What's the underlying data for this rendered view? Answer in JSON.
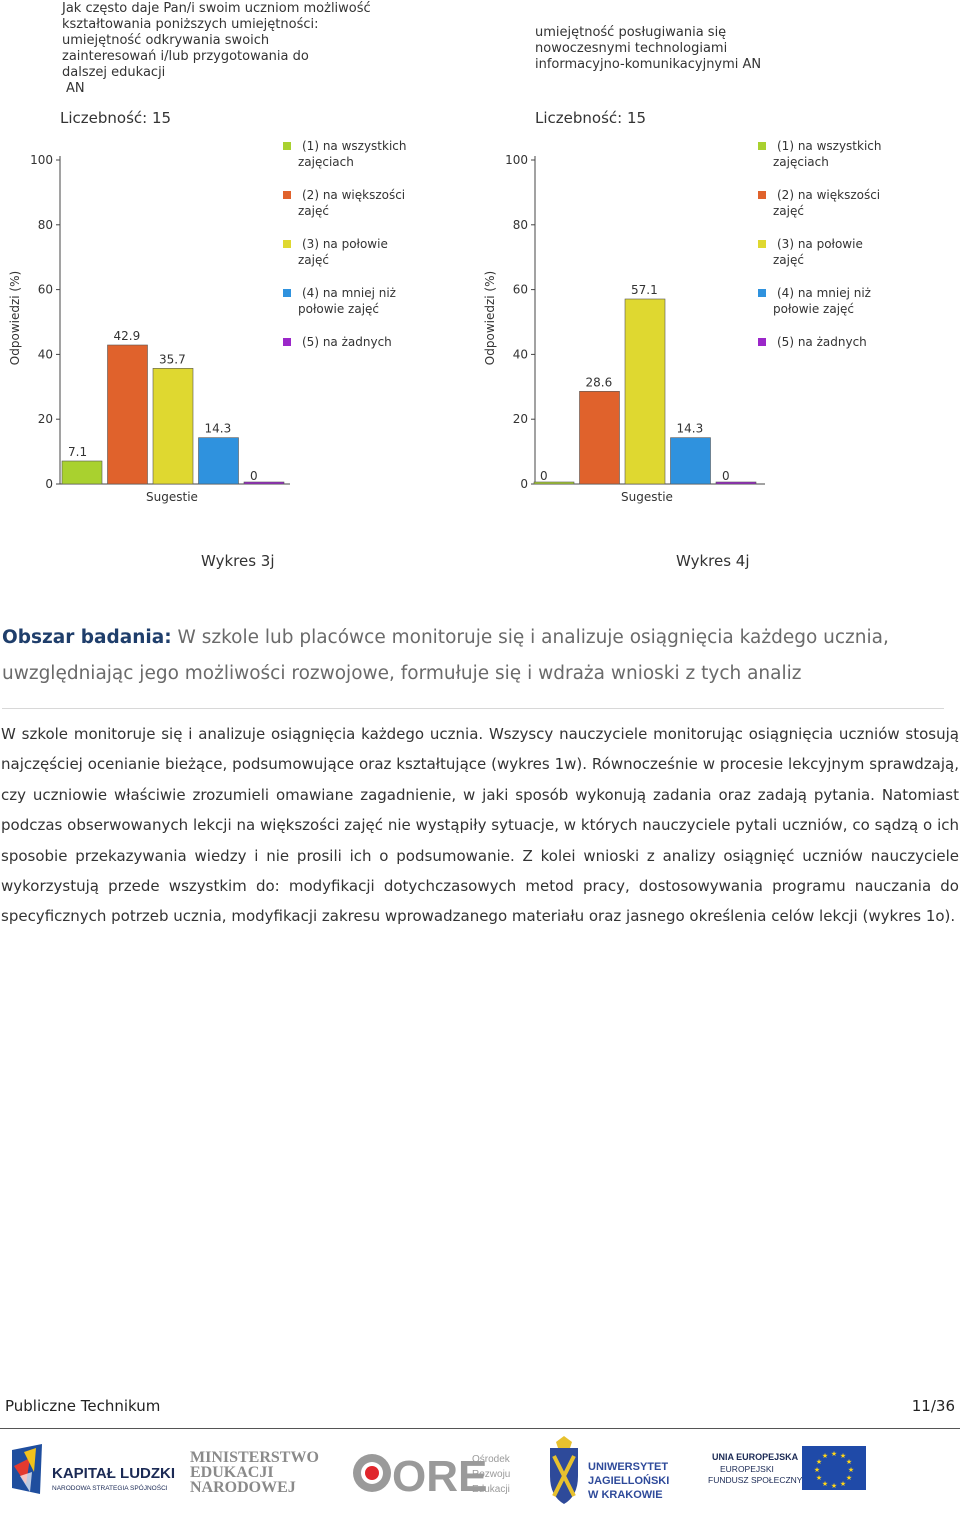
{
  "charts": {
    "left": {
      "title_lines": [
        "Jak często daje Pan/i swoim uczniom możliwość",
        "kształtowania poniższych umiejętności:",
        "umiejętność odkrywania swoich",
        "zainteresowań i/lub przygotowania do",
        "dalszej edukacji",
        "AN"
      ],
      "count_label": "Liczebność: 15",
      "caption": "Wykres 3j"
    },
    "right": {
      "title_lines": [
        "umiejętność posługiwania się",
        "nowoczesnymi technologiami",
        "informacyjno-komunikacyjnymi AN"
      ],
      "count_label": "Liczebność: 15",
      "caption": "Wykres 4j"
    }
  },
  "legend": [
    {
      "lines": [
        "(1) na wszystkich",
        "zajęciach"
      ],
      "color": "#a9d12f"
    },
    {
      "lines": [
        "(2) na większości",
        "zajęć"
      ],
      "color": "#e0622c"
    },
    {
      "lines": [
        "(3) na połowie",
        "zajęć"
      ],
      "color": "#dfd830"
    },
    {
      "lines": [
        "(4) na mniej niż",
        "połowie zajęć"
      ],
      "color": "#2f92de"
    },
    {
      "lines": [
        "(5) na żadnych"
      ],
      "color": "#9b27c9"
    }
  ],
  "chart_data": [
    {
      "type": "bar",
      "categories": [
        "(1) na wszystkich zajęciach",
        "(2) na większości zajęć",
        "(3) na połowie zajęć",
        "(4) na mniej niż połowie zajęć",
        "(5) na żadnych"
      ],
      "values": [
        7.1,
        42.9,
        35.7,
        14.3,
        0
      ],
      "value_labels": [
        "7.1",
        "42.9",
        "35.7",
        "14.3",
        "0"
      ],
      "colors": [
        "#a9d12f",
        "#e0622c",
        "#dfd830",
        "#2f92de",
        "#9b27c9"
      ],
      "xlabel": "Sugestie",
      "ylabel": "Odpowiedzi (%)",
      "ylim": [
        0,
        100
      ],
      "yticks": [
        "0",
        "20",
        "40",
        "60",
        "80",
        "100"
      ],
      "legend_position": "right",
      "grid": false
    },
    {
      "type": "bar",
      "categories": [
        "(1) na wszystkich zajęciach",
        "(2) na większości zajęć",
        "(3) na połowie zajęć",
        "(4) na mniej niż połowie zajęć",
        "(5) na żadnych"
      ],
      "values": [
        0,
        28.6,
        57.1,
        14.3,
        0
      ],
      "value_labels": [
        "0",
        "28.6",
        "57.1",
        "14.3",
        "0"
      ],
      "colors": [
        "#a9d12f",
        "#e0622c",
        "#dfd830",
        "#2f92de",
        "#9b27c9"
      ],
      "xlabel": "Sugestie",
      "ylabel": "Odpowiedzi (%)",
      "ylim": [
        0,
        100
      ],
      "yticks": [
        "0",
        "20",
        "40",
        "60",
        "80",
        "100"
      ],
      "legend_position": "right",
      "grid": false
    }
  ],
  "section": {
    "label": "Obszar badania:",
    "text": "W szkole lub placówce monitoruje się i analizuje osiągnięcia każdego ucznia, uwzględniając jego możliwości rozwojowe, formułuje się i wdraża wnioski z tych analiz"
  },
  "body_text": "W szkole monitoruje się i analizuje osiągnięcia każdego ucznia. Wszyscy nauczyciele monitorując osiągnięcia uczniów stosują najczęściej ocenianie bieżące, podsumowujące oraz kształtujące (wykres 1w). Równocześnie w procesie lekcyjnym sprawdzają, czy uczniowie właściwie zrozumieli omawiane zagadnienie, w jaki sposób wykonują zadania oraz zadają pytania. Natomiast podczas obserwowanych lekcji na większości zajęć nie wystąpiły sytuacje, w których nauczyciele pytali uczniów, co sądzą o ich sposobie przekazywania wiedzy i nie prosili ich o podsumowanie. Z kolei wnioski z analizy osiągnięć uczniów nauczyciele wykorzystują przede wszystkim do: modyfikacji dotychczasowych metod pracy, dostosowywania programu nauczania do specyficznych potrzeb ucznia, modyfikacji zakresu wprowadzanego materiału oraz jasnego określenia celów lekcji (wykres 1o).",
  "footer": {
    "left": "Publiczne Technikum",
    "right": "11/36"
  },
  "logos": {
    "kapital": {
      "title": "KAPITAŁ LUDZKI",
      "subtitle": "NARODOWA STRATEGIA SPÓJNOŚCI"
    },
    "men": {
      "lines": [
        "MINISTERSTWO",
        "EDUKACJI",
        "NARODOWEJ"
      ]
    },
    "ore": {
      "mark": "ORE",
      "lines": [
        "Ośrodek",
        "Rozwoju",
        "Edukacji"
      ]
    },
    "uj": {
      "lines": [
        "UNIWERSYTET",
        "JAGIELLOŃSKI",
        "W KRAKOWIE"
      ]
    },
    "ue": {
      "lines": [
        "UNIA EUROPEJSKA",
        "EUROPEJSKI",
        "FUNDUSZ SPOŁECZNY"
      ]
    }
  }
}
